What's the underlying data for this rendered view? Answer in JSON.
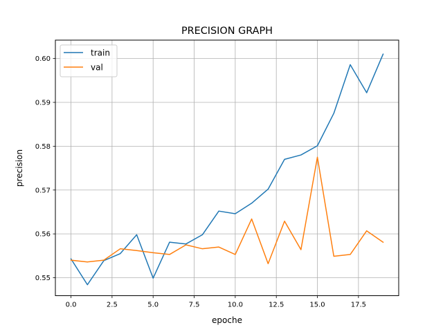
{
  "chart_data": {
    "type": "line",
    "title": "PRECISION GRAPH",
    "xlabel": "epoche",
    "ylabel": "precision",
    "xlim": [
      -0.95,
      19.95
    ],
    "ylim": [
      0.5459,
      0.6042
    ],
    "xticks": [
      0,
      2.5,
      5,
      7.5,
      10,
      12.5,
      15,
      17.5
    ],
    "xtick_labels": [
      "0.0",
      "2.5",
      "5.0",
      "7.5",
      "10.0",
      "12.5",
      "15.0",
      "17.5"
    ],
    "yticks": [
      0.55,
      0.56,
      0.57,
      0.58,
      0.59,
      0.6
    ],
    "ytick_labels": [
      "0.55",
      "0.56",
      "0.57",
      "0.58",
      "0.59",
      "0.60"
    ],
    "grid": true,
    "legend_position": "upper-left",
    "x": [
      0,
      1,
      2,
      3,
      4,
      5,
      6,
      7,
      8,
      9,
      10,
      11,
      12,
      13,
      14,
      15,
      16,
      17,
      18,
      19
    ],
    "series": [
      {
        "name": "train",
        "color": "#1f77b4",
        "values": [
          0.5543,
          0.5484,
          0.5539,
          0.5555,
          0.5598,
          0.5499,
          0.5581,
          0.5577,
          0.5598,
          0.5652,
          0.5646,
          0.567,
          0.5702,
          0.577,
          0.578,
          0.5801,
          0.5875,
          0.5986,
          0.5922,
          0.601
        ]
      },
      {
        "name": "val",
        "color": "#ff7f0e",
        "values": [
          0.554,
          0.5536,
          0.554,
          0.5566,
          0.5562,
          0.5557,
          0.5553,
          0.5575,
          0.5566,
          0.557,
          0.5553,
          0.5634,
          0.5532,
          0.5629,
          0.5564,
          0.5775,
          0.5549,
          0.5553,
          0.5607,
          0.5581
        ]
      }
    ]
  }
}
